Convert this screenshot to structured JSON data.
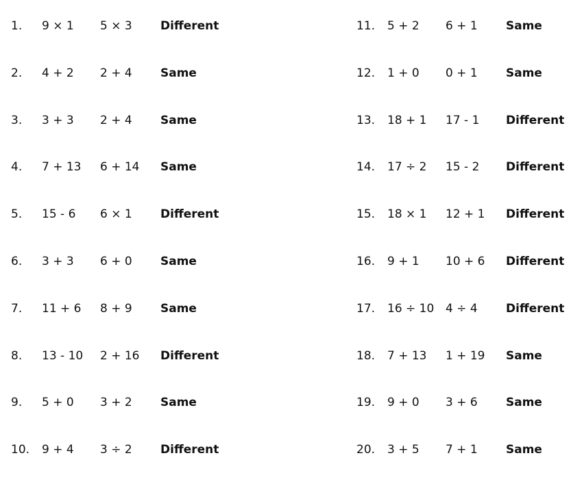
{
  "problems": [
    {
      "n": "1.",
      "a": "9 × 1",
      "b": "5 × 3",
      "answer": "Different"
    },
    {
      "n": "2.",
      "a": "4 + 2",
      "b": "2 + 4",
      "answer": "Same"
    },
    {
      "n": "3.",
      "a": "3 + 3",
      "b": "2 + 4",
      "answer": "Same"
    },
    {
      "n": "4.",
      "a": "7 + 13",
      "b": "6 + 14",
      "answer": "Same"
    },
    {
      "n": "5.",
      "a": "15 - 6",
      "b": "6 × 1",
      "answer": "Different"
    },
    {
      "n": "6.",
      "a": "3 + 3",
      "b": "6 + 0",
      "answer": "Same"
    },
    {
      "n": "7.",
      "a": "11 + 6",
      "b": "8 + 9",
      "answer": "Same"
    },
    {
      "n": "8.",
      "a": "13 - 10",
      "b": "2 + 16",
      "answer": "Different"
    },
    {
      "n": "9.",
      "a": "5 + 0",
      "b": "3 + 2",
      "answer": "Same"
    },
    {
      "n": "10.",
      "a": "9 + 4",
      "b": "3 ÷ 2",
      "answer": "Different"
    },
    {
      "n": "11.",
      "a": "5 + 2",
      "b": "6 + 1",
      "answer": "Same"
    },
    {
      "n": "12.",
      "a": "1 + 0",
      "b": "0 + 1",
      "answer": "Same"
    },
    {
      "n": "13.",
      "a": "18 + 1",
      "b": "17 - 1",
      "answer": "Different"
    },
    {
      "n": "14.",
      "a": "17 ÷ 2",
      "b": "15 - 2",
      "answer": "Different"
    },
    {
      "n": "15.",
      "a": "18 × 1",
      "b": "12 + 1",
      "answer": "Different"
    },
    {
      "n": "16.",
      "a": "9 + 1",
      "b": "10 + 6",
      "answer": "Different"
    },
    {
      "n": "17.",
      "a": "16 ÷ 10",
      "b": "4 ÷ 4",
      "answer": "Different"
    },
    {
      "n": "18.",
      "a": "7 + 13",
      "b": "1 + 19",
      "answer": "Same"
    },
    {
      "n": "19.",
      "a": "9 + 0",
      "b": "3 + 6",
      "answer": "Same"
    },
    {
      "n": "20.",
      "a": "3 + 5",
      "b": "7 + 1",
      "answer": "Same"
    }
  ]
}
